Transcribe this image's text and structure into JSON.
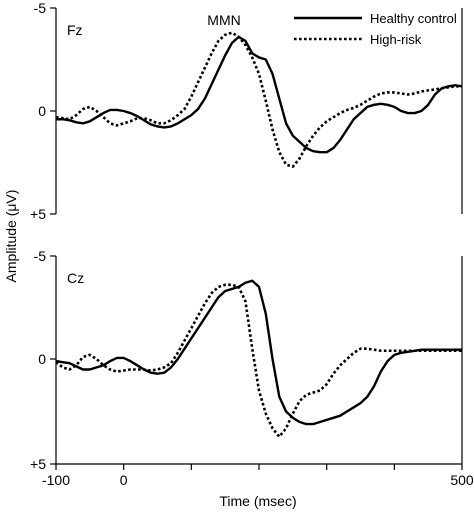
{
  "chart_data": {
    "type": "line",
    "xlabel": "Time (msec)",
    "ylabel": "Amplitude (μV)",
    "xlim": [
      -100,
      500
    ],
    "ylim": [
      -5,
      5
    ],
    "y_inverted": true,
    "x_ticks": [
      -100,
      0,
      500
    ],
    "y_ticks": [
      -5,
      0,
      5
    ],
    "y_tick_labels": [
      "-5",
      "0",
      "+5"
    ],
    "annotation": "MMN",
    "legend": {
      "position": "top-right",
      "entries": [
        {
          "name": "Healthy control",
          "style": "solid"
        },
        {
          "name": "High-risk",
          "style": "dotted"
        }
      ]
    },
    "panels": [
      {
        "label": "Fz",
        "series": [
          {
            "name": "Healthy control",
            "style": "solid",
            "x": [
              -100,
              -90,
              -80,
              -70,
              -60,
              -50,
              -40,
              -30,
              -20,
              -10,
              0,
              10,
              20,
              30,
              40,
              50,
              60,
              70,
              80,
              90,
              100,
              110,
              120,
              130,
              140,
              150,
              160,
              170,
              180,
              190,
              200,
              210,
              220,
              230,
              240,
              250,
              260,
              270,
              280,
              290,
              300,
              310,
              320,
              330,
              340,
              350,
              360,
              370,
              380,
              390,
              400,
              410,
              420,
              430,
              440,
              450,
              460,
              470,
              480,
              490,
              500
            ],
            "y": [
              0.4,
              0.4,
              0.45,
              0.55,
              0.6,
              0.5,
              0.3,
              0.1,
              -0.05,
              -0.05,
              0.0,
              0.1,
              0.25,
              0.45,
              0.65,
              0.75,
              0.8,
              0.75,
              0.6,
              0.4,
              0.2,
              -0.1,
              -0.6,
              -1.3,
              -2.0,
              -2.7,
              -3.3,
              -3.6,
              -3.4,
              -2.8,
              -2.6,
              -2.5,
              -1.8,
              -0.6,
              0.6,
              1.2,
              1.5,
              1.8,
              1.95,
              2.0,
              2.0,
              1.8,
              1.4,
              0.9,
              0.4,
              0.1,
              -0.2,
              -0.3,
              -0.35,
              -0.3,
              -0.2,
              0.0,
              0.1,
              0.1,
              0.0,
              -0.3,
              -0.8,
              -1.1,
              -1.2,
              -1.25,
              -1.2
            ]
          },
          {
            "name": "High-risk",
            "style": "dotted",
            "x": [
              -100,
              -90,
              -80,
              -70,
              -60,
              -50,
              -40,
              -30,
              -20,
              -10,
              0,
              10,
              20,
              30,
              40,
              50,
              60,
              70,
              80,
              90,
              100,
              110,
              120,
              130,
              140,
              150,
              160,
              170,
              180,
              190,
              200,
              210,
              220,
              230,
              240,
              250,
              260,
              270,
              280,
              290,
              300,
              310,
              320,
              330,
              340,
              350,
              360,
              370,
              380,
              390,
              400,
              410,
              420,
              430,
              440,
              450,
              460,
              470,
              480,
              490,
              500
            ],
            "y": [
              0.3,
              0.35,
              0.4,
              0.2,
              -0.1,
              -0.2,
              0.0,
              0.3,
              0.6,
              0.7,
              0.6,
              0.5,
              0.35,
              0.35,
              0.45,
              0.6,
              0.6,
              0.45,
              0.2,
              -0.1,
              -0.7,
              -1.4,
              -2.1,
              -2.8,
              -3.4,
              -3.7,
              -3.8,
              -3.6,
              -3.2,
              -2.6,
              -1.8,
              -0.5,
              0.9,
              2.0,
              2.6,
              2.7,
              2.3,
              1.7,
              1.2,
              0.8,
              0.5,
              0.3,
              0.1,
              -0.05,
              -0.15,
              -0.3,
              -0.5,
              -0.7,
              -0.85,
              -0.9,
              -0.9,
              -0.85,
              -0.8,
              -0.85,
              -0.95,
              -1.0,
              -1.05,
              -1.1,
              -1.15,
              -1.2,
              -1.2
            ]
          }
        ]
      },
      {
        "label": "Cz",
        "series": [
          {
            "name": "Healthy control",
            "style": "solid",
            "x": [
              -100,
              -90,
              -80,
              -70,
              -60,
              -50,
              -40,
              -30,
              -20,
              -10,
              0,
              10,
              20,
              30,
              40,
              50,
              60,
              70,
              80,
              90,
              100,
              110,
              120,
              130,
              140,
              150,
              160,
              170,
              180,
              190,
              200,
              210,
              220,
              230,
              240,
              250,
              260,
              270,
              280,
              290,
              300,
              310,
              320,
              330,
              340,
              350,
              360,
              370,
              380,
              390,
              400,
              410,
              420,
              430,
              440,
              450,
              460,
              470,
              480,
              490,
              500
            ],
            "y": [
              0.1,
              0.15,
              0.2,
              0.35,
              0.5,
              0.5,
              0.4,
              0.3,
              0.1,
              -0.05,
              -0.05,
              0.1,
              0.3,
              0.5,
              0.65,
              0.7,
              0.65,
              0.4,
              0.0,
              -0.5,
              -1.0,
              -1.5,
              -2.0,
              -2.5,
              -3.0,
              -3.3,
              -3.4,
              -3.5,
              -3.7,
              -3.8,
              -3.5,
              -2.2,
              0.0,
              1.8,
              2.5,
              2.8,
              3.0,
              3.1,
              3.1,
              3.0,
              2.9,
              2.8,
              2.7,
              2.5,
              2.3,
              2.1,
              1.8,
              1.3,
              0.6,
              0.1,
              -0.2,
              -0.3,
              -0.35,
              -0.4,
              -0.45,
              -0.45,
              -0.45,
              -0.45,
              -0.45,
              -0.45,
              -0.45
            ]
          },
          {
            "name": "High-risk",
            "style": "dotted",
            "x": [
              -100,
              -90,
              -80,
              -70,
              -60,
              -50,
              -40,
              -30,
              -20,
              -10,
              0,
              10,
              20,
              30,
              40,
              50,
              60,
              70,
              80,
              90,
              100,
              110,
              120,
              130,
              140,
              150,
              160,
              170,
              180,
              190,
              200,
              210,
              220,
              230,
              240,
              250,
              260,
              270,
              280,
              290,
              300,
              310,
              320,
              330,
              340,
              350,
              360,
              370,
              380,
              390,
              400,
              410,
              420,
              430,
              440,
              450,
              460,
              470,
              480,
              490,
              500
            ],
            "y": [
              0.15,
              0.4,
              0.5,
              0.3,
              -0.1,
              -0.2,
              0.0,
              0.3,
              0.5,
              0.6,
              0.55,
              0.5,
              0.5,
              0.5,
              0.55,
              0.5,
              0.4,
              0.2,
              -0.3,
              -0.9,
              -1.5,
              -2.1,
              -2.7,
              -3.2,
              -3.5,
              -3.6,
              -3.6,
              -3.5,
              -2.8,
              -0.5,
              1.5,
              2.6,
              3.3,
              3.7,
              3.3,
              2.6,
              2.0,
              1.7,
              1.6,
              1.5,
              1.2,
              0.7,
              0.3,
              0.0,
              -0.3,
              -0.5,
              -0.5,
              -0.45,
              -0.4,
              -0.4,
              -0.4,
              -0.4,
              -0.4,
              -0.4,
              -0.4,
              -0.4,
              -0.4,
              -0.4,
              -0.4,
              -0.4,
              -0.4
            ]
          }
        ]
      }
    ]
  }
}
